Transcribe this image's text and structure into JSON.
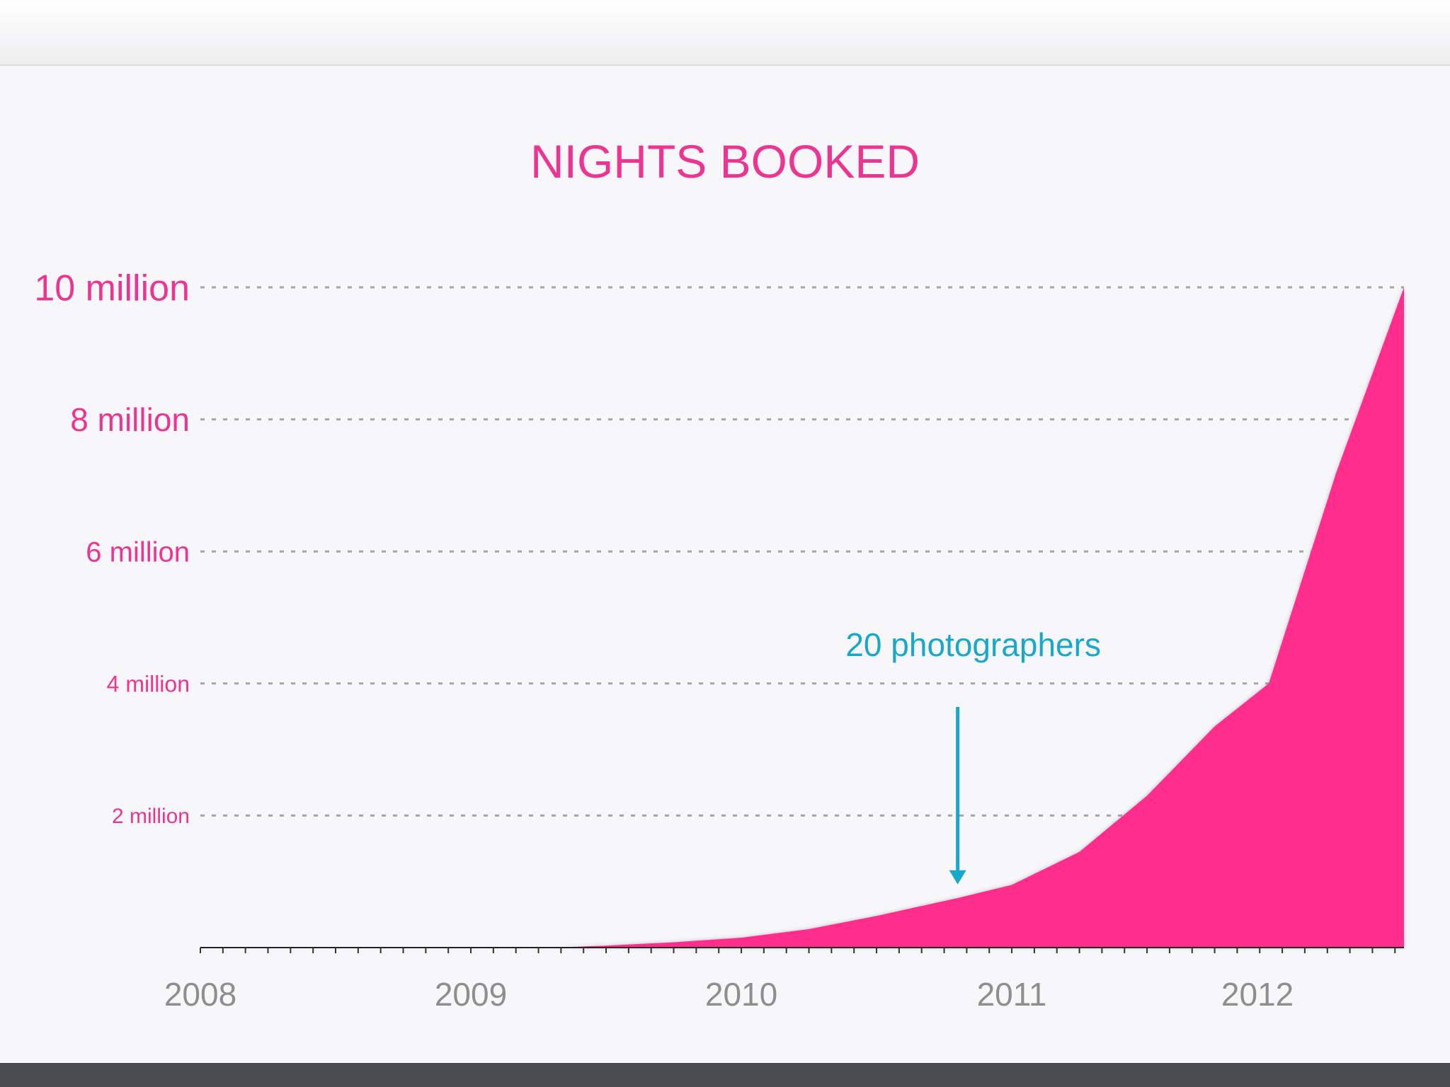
{
  "colors": {
    "accent": "#ff2e8c",
    "label_pink": "#ec3592",
    "annotation": "#1aa7cc",
    "axis_label": "#8e8e8e"
  },
  "chart_data": {
    "type": "area",
    "title": "NIGHTS BOOKED",
    "xlabel": "",
    "ylabel": "",
    "x_tick_labels": [
      "2008",
      "2009",
      "2010",
      "2011",
      "2012"
    ],
    "y_tick_labels": [
      "2 million",
      "4 million",
      "6 million",
      "8 million",
      "10 million"
    ],
    "y_ticks": [
      2000000,
      4000000,
      6000000,
      8000000,
      10000000
    ],
    "xlim": [
      2008.0,
      2012.45
    ],
    "ylim": [
      0,
      10000000
    ],
    "grid": true,
    "series": [
      {
        "x": [
          2008.0,
          2009.0,
          2009.3,
          2009.5,
          2009.75,
          2010.0,
          2010.25,
          2010.5,
          2010.8,
          2011.0,
          2011.25,
          2011.5,
          2011.75,
          2011.95,
          2012.2,
          2012.45
        ],
        "values": [
          0,
          0,
          0,
          30000,
          80000,
          150000,
          280000,
          480000,
          750000,
          950000,
          1450000,
          2300000,
          3350000,
          4000000,
          7200000,
          10000000
        ]
      }
    ],
    "annotations": [
      {
        "text": "20 photographers",
        "x": 2010.8,
        "y": 1000000
      }
    ]
  }
}
